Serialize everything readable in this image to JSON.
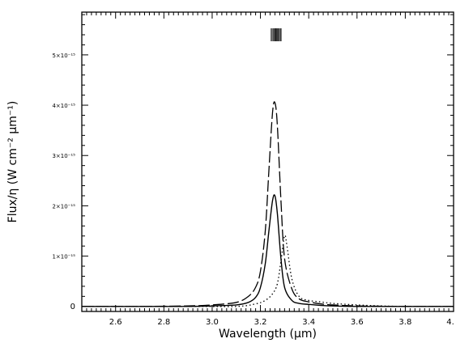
{
  "chart_data": {
    "type": "line",
    "title": "",
    "xlabel": "Wavelength (μm)",
    "ylabel": "Flux/η (W cm⁻² μm⁻¹)",
    "xlim": [
      2.46,
      4.0
    ],
    "ylim": [
      -1e-16,
      5.85e-15
    ],
    "grid": false,
    "legend": "none",
    "x_ticks": [
      2.6,
      2.8,
      3.0,
      3.2,
      3.4,
      3.6,
      3.8,
      4.0
    ],
    "x_tick_labels": [
      "2.6",
      "2.8",
      "3.0",
      "3.2",
      "3.4",
      "3.6",
      "3.8",
      "4."
    ],
    "y_ticks": [
      0,
      1e-15,
      2e-15,
      3e-15,
      4e-15,
      5e-15
    ],
    "y_tick_labels": [
      "0",
      "1×10⁻¹⁵",
      "2×10⁻¹⁵",
      "3×10⁻¹⁵",
      "4×10⁻¹⁵",
      "5×10⁻¹⁵"
    ],
    "line_markers": [
      3.245,
      3.252,
      3.258,
      3.263,
      3.268,
      3.273,
      3.279,
      3.285
    ],
    "series": [
      {
        "style": "long-dash",
        "x": [
          2.46,
          2.7,
          2.9,
          3.0,
          3.1,
          3.15,
          3.18,
          3.2,
          3.22,
          3.235,
          3.25,
          3.26,
          3.27,
          3.285,
          3.3,
          3.33,
          3.36,
          3.4,
          3.45,
          3.5,
          3.6,
          3.8,
          4.0
        ],
        "y": [
          0.0,
          0.0,
          1e-17,
          3e-17,
          8e-17,
          2e-16,
          3.8e-16,
          7e-16,
          1.5e-15,
          2.7e-15,
          3.85e-15,
          4.05e-15,
          3.6e-15,
          2.1e-15,
          9.5e-16,
          3.5e-16,
          1.5e-16,
          9e-17,
          5e-17,
          3e-17,
          1e-17,
          0.0,
          0.0
        ]
      },
      {
        "style": "solid",
        "x": [
          2.46,
          2.7,
          2.9,
          3.0,
          3.1,
          3.15,
          3.18,
          3.2,
          3.22,
          3.235,
          3.25,
          3.26,
          3.27,
          3.285,
          3.3,
          3.33,
          3.36,
          3.4,
          3.45,
          3.5,
          3.6,
          3.8,
          4.0
        ],
        "y": [
          0.0,
          0.0,
          0.0,
          1e-17,
          3e-17,
          8e-17,
          1.8e-16,
          3.8e-16,
          8.5e-16,
          1.5e-15,
          2.1e-15,
          2.2e-15,
          1.85e-15,
          9.5e-16,
          3.8e-16,
          1.2e-16,
          6e-17,
          4e-17,
          2e-17,
          1e-17,
          0.0,
          0.0,
          0.0
        ]
      },
      {
        "style": "dotted",
        "x": [
          2.46,
          2.9,
          3.1,
          3.18,
          3.22,
          3.25,
          3.27,
          3.285,
          3.3,
          3.31,
          3.33,
          3.36,
          3.4,
          3.45,
          3.5,
          3.6,
          3.7,
          3.8,
          4.0
        ],
        "y": [
          0.0,
          0.0,
          0.0,
          5e-17,
          1.2e-16,
          2.5e-16,
          4.5e-16,
          9e-16,
          1.4e-15,
          1.2e-15,
          5.5e-16,
          2e-16,
          1.2e-16,
          9e-17,
          6e-17,
          3e-17,
          1e-17,
          0.0,
          0.0
        ]
      }
    ]
  }
}
